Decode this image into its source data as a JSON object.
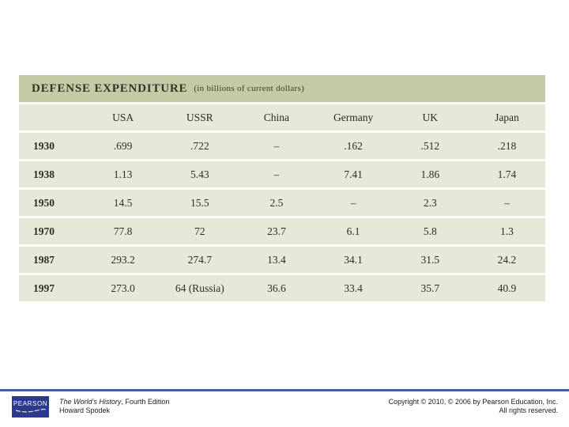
{
  "table": {
    "title": "DEFENSE EXPENDITURE",
    "subtitle": "(in billions of current dollars)"
  },
  "chart_data": {
    "type": "table",
    "title": "DEFENSE EXPENDITURE (in billions of current dollars)",
    "columns": [
      "",
      "USA",
      "USSR",
      "China",
      "Germany",
      "UK",
      "Japan"
    ],
    "rows": [
      [
        "1930",
        ".699",
        ".722",
        "–",
        ".162",
        ".512",
        ".218"
      ],
      [
        "1938",
        "1.13",
        "5.43",
        "–",
        "7.41",
        "1.86",
        "1.74"
      ],
      [
        "1950",
        "14.5",
        "15.5",
        "2.5",
        "–",
        "2.3",
        "–"
      ],
      [
        "1970",
        "77.8",
        "72",
        "23.7",
        "6.1",
        "5.8",
        "1.3"
      ],
      [
        "1987",
        "293.2",
        "274.7",
        "13.4",
        "34.1",
        "31.5",
        "24.2"
      ],
      [
        "1997",
        "273.0",
        "64 (Russia)",
        "36.6",
        "33.4",
        "35.7",
        "40.9"
      ]
    ]
  },
  "footer": {
    "logo_text": "PEARSON",
    "book_title": "The World’s History",
    "edition": ", Fourth Edition",
    "author": "Howard Spodek",
    "copyright_line1": "Copyright © 2010, © 2006 by Pearson Education, Inc.",
    "copyright_line2": "All rights reserved."
  },
  "colors": {
    "title_bar_bg": "#c6c9a6",
    "row_bg": "#e6e8d9",
    "divider_blue": "#3c5fa5",
    "pearson_navy": "#2b3990"
  }
}
